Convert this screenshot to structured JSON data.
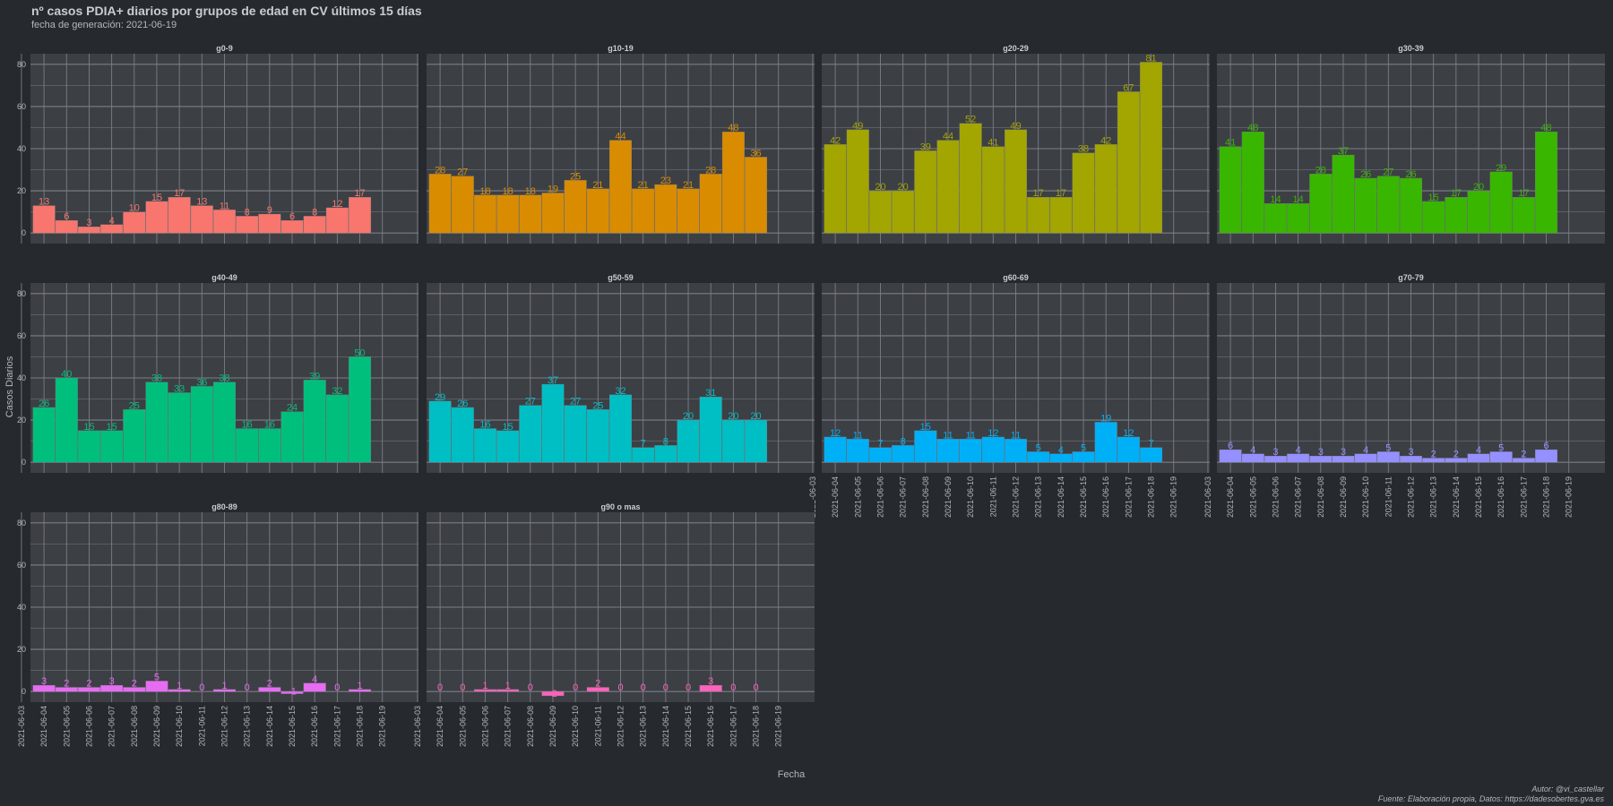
{
  "header": {
    "title": "nº casos PDIA+ diarios por grupos de edad en CV últimos 15 días",
    "subtitle": "fecha de generación:  2021-06-19"
  },
  "caption": {
    "author": "Autor: @vi_castellar",
    "source": "Fuente: Elaboración propia, Datos: https://dadesobertes.gva.es"
  },
  "colors": {
    "background": "#262a2f",
    "panel": "#3c3f44",
    "grid": "#7b7f86",
    "strip_text": "#c9ccd0",
    "axis_text": "#b3b7bb"
  },
  "chart_data": {
    "type": "bar",
    "facet": "wrap",
    "xlabel": "Fecha",
    "ylabel": "Casos Diarios",
    "ylim": [
      -5,
      85
    ],
    "yticks": [
      0,
      20,
      40,
      60,
      80
    ],
    "x_tick_labels": [
      "2021-06-03",
      "2021-06-04",
      "2021-06-05",
      "2021-06-06",
      "2021-06-07",
      "2021-06-08",
      "2021-06-09",
      "2021-06-10",
      "2021-06-11",
      "2021-06-12",
      "2021-06-13",
      "2021-06-14",
      "2021-06-15",
      "2021-06-16",
      "2021-06-17",
      "2021-06-18",
      "2021-06-19"
    ],
    "categories": [
      "2021-06-04",
      "2021-06-05",
      "2021-06-06",
      "2021-06-07",
      "2021-06-08",
      "2021-06-09",
      "2021-06-10",
      "2021-06-11",
      "2021-06-12",
      "2021-06-13",
      "2021-06-14",
      "2021-06-15",
      "2021-06-16",
      "2021-06-17",
      "2021-06-18"
    ],
    "grid": true,
    "legend": "none",
    "series": [
      {
        "name": "g0-9",
        "color": "#f8766d",
        "values": [
          13,
          6,
          3,
          4,
          10,
          15,
          17,
          13,
          11,
          8,
          9,
          6,
          8,
          12,
          17
        ]
      },
      {
        "name": "g10-19",
        "color": "#d98c00",
        "values": [
          28,
          27,
          18,
          18,
          18,
          19,
          25,
          21,
          44,
          21,
          23,
          21,
          28,
          48,
          36
        ]
      },
      {
        "name": "g20-29",
        "color": "#a3a500",
        "values": [
          42,
          49,
          20,
          20,
          39,
          44,
          52,
          41,
          49,
          17,
          17,
          38,
          42,
          67,
          81
        ]
      },
      {
        "name": "g30-39",
        "color": "#39b600",
        "values": [
          41,
          48,
          14,
          14,
          28,
          37,
          26,
          27,
          26,
          15,
          17,
          20,
          29,
          17,
          48
        ]
      },
      {
        "name": "g40-49",
        "color": "#00bf7d",
        "values": [
          26,
          40,
          15,
          15,
          25,
          38,
          33,
          36,
          38,
          16,
          16,
          24,
          39,
          32,
          50
        ]
      },
      {
        "name": "g50-59",
        "color": "#00bfc4",
        "values": [
          29,
          26,
          16,
          15,
          27,
          37,
          27,
          25,
          32,
          7,
          8,
          20,
          31,
          20,
          20
        ]
      },
      {
        "name": "g60-69",
        "color": "#00b0f6",
        "values": [
          12,
          11,
          7,
          8,
          15,
          11,
          11,
          12,
          11,
          5,
          4,
          5,
          19,
          12,
          7
        ]
      },
      {
        "name": "g70-79",
        "color": "#9590ff",
        "values": [
          6,
          4,
          3,
          4,
          3,
          3,
          4,
          5,
          3,
          2,
          2,
          4,
          5,
          2,
          6
        ]
      },
      {
        "name": "g80-89",
        "color": "#e76bf3",
        "values": [
          3,
          2,
          2,
          3,
          2,
          5,
          1,
          0,
          1,
          0,
          2,
          -1,
          4,
          0,
          1
        ]
      },
      {
        "name": "g90 o mas",
        "color": "#ff62bc",
        "values": [
          0,
          0,
          1,
          1,
          0,
          -2,
          0,
          2,
          0,
          0,
          0,
          0,
          3,
          0,
          0
        ]
      }
    ]
  }
}
